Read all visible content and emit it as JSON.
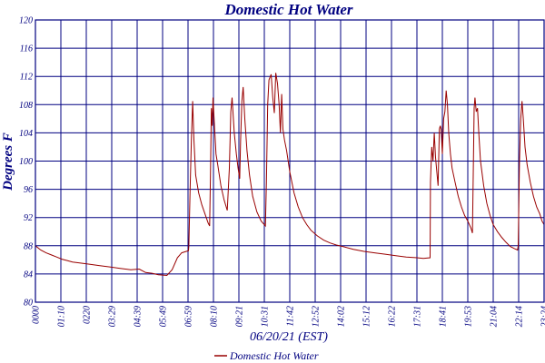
{
  "chart_data": {
    "type": "line",
    "title": "Domestic Hot Water",
    "xlabel": "06/20/21 (EST)",
    "ylabel": "Degrees F",
    "ylim": [
      80,
      120
    ],
    "yticks": [
      "80",
      "84",
      "88",
      "92",
      "96",
      "100",
      "104",
      "108",
      "112",
      "116",
      "120"
    ],
    "xticks": [
      "0000",
      "01:10",
      "0220",
      "03:29",
      "04:39",
      "05:49",
      "06:59",
      "08:10",
      "09:21",
      "10:31",
      "11:42",
      "12:52",
      "14:02",
      "15:12",
      "16:22",
      "17:31",
      "18:41",
      "19:53",
      "21:04",
      "22:14",
      "23:24"
    ],
    "xlim_hours": [
      0,
      24
    ],
    "grid": true,
    "legend": "bottom-center",
    "series": [
      {
        "name": "Domestic Hot Water",
        "color": "#990000",
        "points": [
          [
            0.0,
            88.0
          ],
          [
            0.25,
            87.4
          ],
          [
            0.5,
            87.0
          ],
          [
            0.75,
            86.7
          ],
          [
            1.0,
            86.4
          ],
          [
            1.25,
            86.1
          ],
          [
            1.5,
            85.9
          ],
          [
            1.75,
            85.7
          ],
          [
            2.0,
            85.6
          ],
          [
            2.5,
            85.4
          ],
          [
            3.0,
            85.2
          ],
          [
            3.5,
            85.0
          ],
          [
            4.0,
            84.8
          ],
          [
            4.5,
            84.6
          ],
          [
            4.9,
            84.7
          ],
          [
            5.2,
            84.2
          ],
          [
            5.5,
            84.1
          ],
          [
            5.8,
            83.9
          ],
          [
            6.2,
            83.8
          ],
          [
            6.45,
            84.6
          ],
          [
            6.7,
            86.3
          ],
          [
            6.9,
            87.0
          ],
          [
            7.22,
            87.3
          ],
          [
            7.24,
            88.0
          ],
          [
            7.3,
            96.0
          ],
          [
            7.36,
            103.0
          ],
          [
            7.42,
            108.5
          ],
          [
            7.48,
            103.0
          ],
          [
            7.56,
            98.0
          ],
          [
            7.7,
            95.5
          ],
          [
            7.85,
            93.8
          ],
          [
            8.0,
            92.5
          ],
          [
            8.15,
            91.2
          ],
          [
            8.22,
            90.8
          ],
          [
            8.26,
            98.0
          ],
          [
            8.3,
            107.5
          ],
          [
            8.34,
            105.0
          ],
          [
            8.38,
            109.0
          ],
          [
            8.44,
            105.5
          ],
          [
            8.52,
            101.0
          ],
          [
            8.6,
            99.5
          ],
          [
            8.75,
            96.5
          ],
          [
            8.9,
            94.5
          ],
          [
            9.05,
            93.0
          ],
          [
            9.15,
            99.0
          ],
          [
            9.22,
            107.0
          ],
          [
            9.28,
            109.0
          ],
          [
            9.38,
            104.0
          ],
          [
            9.48,
            101.0
          ],
          [
            9.56,
            99.0
          ],
          [
            9.64,
            97.5
          ],
          [
            9.68,
            103.0
          ],
          [
            9.74,
            108.5
          ],
          [
            9.8,
            110.5
          ],
          [
            9.88,
            106.0
          ],
          [
            9.98,
            101.5
          ],
          [
            10.1,
            98.0
          ],
          [
            10.25,
            95.0
          ],
          [
            10.45,
            92.8
          ],
          [
            10.65,
            91.5
          ],
          [
            10.85,
            90.8
          ],
          [
            10.9,
            97.0
          ],
          [
            10.96,
            108.0
          ],
          [
            11.02,
            111.5
          ],
          [
            11.12,
            112.3
          ],
          [
            11.2,
            109.0
          ],
          [
            11.27,
            106.8
          ],
          [
            11.34,
            112.5
          ],
          [
            11.42,
            111.0
          ],
          [
            11.5,
            108.0
          ],
          [
            11.56,
            104.0
          ],
          [
            11.62,
            109.5
          ],
          [
            11.68,
            104.5
          ],
          [
            11.75,
            103.0
          ],
          [
            11.85,
            101.5
          ],
          [
            12.0,
            98.5
          ],
          [
            12.2,
            95.5
          ],
          [
            12.4,
            93.5
          ],
          [
            12.6,
            92.0
          ],
          [
            12.8,
            91.0
          ],
          [
            13.0,
            90.2
          ],
          [
            13.3,
            89.4
          ],
          [
            13.6,
            88.8
          ],
          [
            13.9,
            88.4
          ],
          [
            14.2,
            88.1
          ],
          [
            14.5,
            87.9
          ],
          [
            15.0,
            87.5
          ],
          [
            15.5,
            87.2
          ],
          [
            16.0,
            87.0
          ],
          [
            16.5,
            86.8
          ],
          [
            17.0,
            86.6
          ],
          [
            17.5,
            86.4
          ],
          [
            18.0,
            86.3
          ],
          [
            18.3,
            86.2
          ],
          [
            18.62,
            86.3
          ],
          [
            18.64,
            97.0
          ],
          [
            18.7,
            102.0
          ],
          [
            18.76,
            100.0
          ],
          [
            18.82,
            104.0
          ],
          [
            18.88,
            100.5
          ],
          [
            18.94,
            98.5
          ],
          [
            19.0,
            96.5
          ],
          [
            19.06,
            104.5
          ],
          [
            19.1,
            105.0
          ],
          [
            19.14,
            104.5
          ],
          [
            19.2,
            101.0
          ],
          [
            19.26,
            106.0
          ],
          [
            19.32,
            107.0
          ],
          [
            19.38,
            110.0
          ],
          [
            19.44,
            108.0
          ],
          [
            19.5,
            104.0
          ],
          [
            19.58,
            101.0
          ],
          [
            19.66,
            99.0
          ],
          [
            19.8,
            97.0
          ],
          [
            19.95,
            95.0
          ],
          [
            20.1,
            93.5
          ],
          [
            20.25,
            92.3
          ],
          [
            20.4,
            91.5
          ],
          [
            20.55,
            90.5
          ],
          [
            20.62,
            89.8
          ],
          [
            20.66,
            99.0
          ],
          [
            20.7,
            107.5
          ],
          [
            20.74,
            109.0
          ],
          [
            20.8,
            107.0
          ],
          [
            20.86,
            107.5
          ],
          [
            20.92,
            104.0
          ],
          [
            21.0,
            100.0
          ],
          [
            21.15,
            96.5
          ],
          [
            21.3,
            94.0
          ],
          [
            21.45,
            92.3
          ],
          [
            21.6,
            91.0
          ],
          [
            21.8,
            90.0
          ],
          [
            22.0,
            89.2
          ],
          [
            22.2,
            88.5
          ],
          [
            22.4,
            87.9
          ],
          [
            22.6,
            87.6
          ],
          [
            22.75,
            87.4
          ],
          [
            22.78,
            88.0
          ],
          [
            22.84,
            100.0
          ],
          [
            22.9,
            106.0
          ],
          [
            22.96,
            108.5
          ],
          [
            23.02,
            106.0
          ],
          [
            23.1,
            102.0
          ],
          [
            23.2,
            99.5
          ],
          [
            23.35,
            97.0
          ],
          [
            23.5,
            95.0
          ],
          [
            23.65,
            93.5
          ],
          [
            23.8,
            92.5
          ],
          [
            23.9,
            91.5
          ],
          [
            24.0,
            91.0
          ]
        ]
      }
    ]
  }
}
